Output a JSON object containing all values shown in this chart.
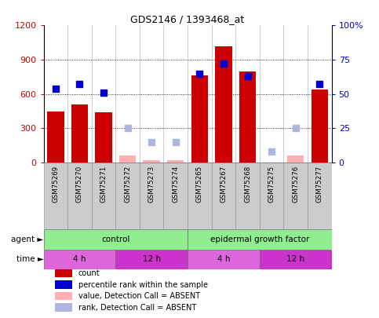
{
  "title": "GDS2146 / 1393468_at",
  "samples": [
    "GSM75269",
    "GSM75270",
    "GSM75271",
    "GSM75272",
    "GSM75273",
    "GSM75274",
    "GSM75265",
    "GSM75267",
    "GSM75268",
    "GSM75275",
    "GSM75276",
    "GSM75277"
  ],
  "count_values": [
    450,
    510,
    440,
    null,
    null,
    null,
    760,
    1020,
    800,
    null,
    null,
    640
  ],
  "count_absent": [
    null,
    null,
    null,
    60,
    20,
    20,
    null,
    null,
    null,
    null,
    60,
    null
  ],
  "percentile_values": [
    54,
    57,
    51,
    null,
    null,
    null,
    65,
    72,
    63,
    null,
    null,
    57
  ],
  "percentile_absent": [
    null,
    null,
    null,
    25,
    15,
    15,
    null,
    null,
    null,
    8,
    25,
    null
  ],
  "ylim_left": [
    0,
    1200
  ],
  "ylim_right": [
    0,
    100
  ],
  "yticks_left": [
    0,
    300,
    600,
    900,
    1200
  ],
  "yticks_right": [
    0,
    25,
    50,
    75,
    100
  ],
  "ytick_labels_right": [
    "0",
    "25",
    "50",
    "75",
    "100%"
  ],
  "bar_color_present": "#cc0000",
  "bar_color_absent": "#ffb0b0",
  "dot_color_present": "#0000cc",
  "dot_color_absent": "#b0b4e0",
  "agent_groups": [
    {
      "label": "control",
      "start": 0,
      "end": 6,
      "color": "#90ee90"
    },
    {
      "label": "epidermal growth factor",
      "start": 6,
      "end": 12,
      "color": "#90ee90"
    }
  ],
  "time_groups": [
    {
      "label": "4 h",
      "start": 0,
      "end": 3,
      "color": "#dd66dd"
    },
    {
      "label": "12 h",
      "start": 3,
      "end": 6,
      "color": "#cc33cc"
    },
    {
      "label": "4 h",
      "start": 6,
      "end": 9,
      "color": "#dd66dd"
    },
    {
      "label": "12 h",
      "start": 9,
      "end": 12,
      "color": "#cc33cc"
    }
  ],
  "legend_items": [
    {
      "label": "count",
      "color": "#cc0000"
    },
    {
      "label": "percentile rank within the sample",
      "color": "#0000cc"
    },
    {
      "label": "value, Detection Call = ABSENT",
      "color": "#ffb0b0"
    },
    {
      "label": "rank, Detection Call = ABSENT",
      "color": "#b0b4e0"
    }
  ],
  "background_color": "#ffffff",
  "xticklabel_bg": "#cccccc",
  "xticklabel_edge": "#999999"
}
